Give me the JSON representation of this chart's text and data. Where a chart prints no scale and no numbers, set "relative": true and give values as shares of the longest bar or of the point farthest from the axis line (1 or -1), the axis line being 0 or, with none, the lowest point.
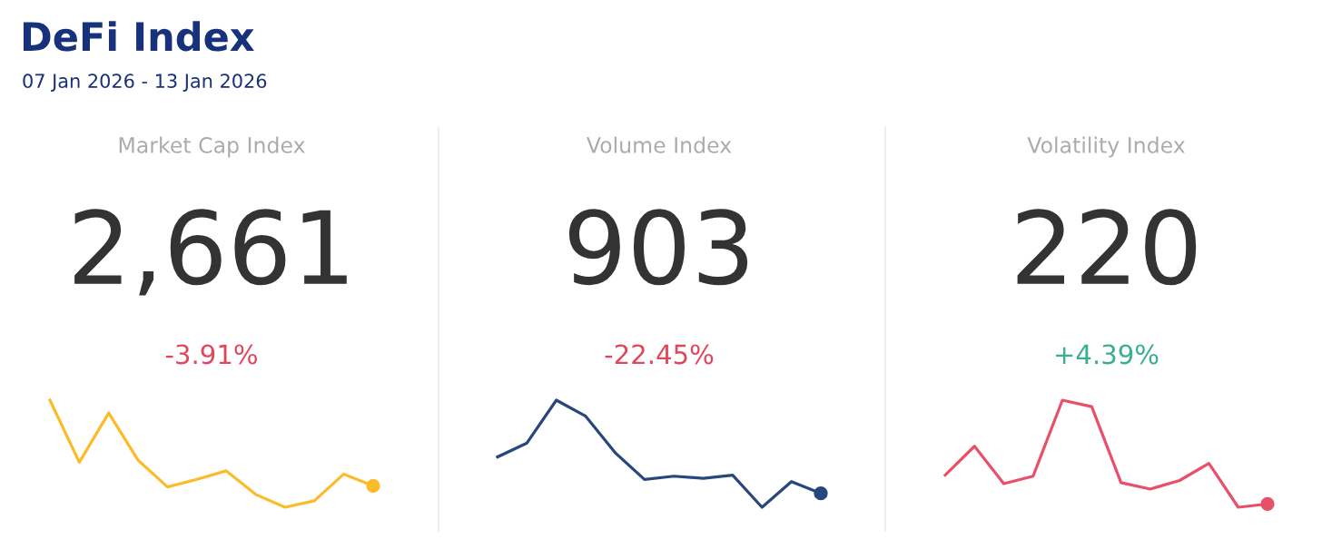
{
  "chart_data": [
    {
      "type": "other",
      "title": "DeFi Index",
      "subtitle": "07 Jan 2026 - 13 Jan 2026"
    },
    {
      "type": "line",
      "title": "Market Cap Index",
      "annotations": [
        "2,661",
        "-3.91%"
      ],
      "relative": true,
      "categories": [
        null,
        null,
        null,
        null,
        null,
        null,
        null,
        null,
        null,
        null,
        null,
        null
      ],
      "series": [
        {
          "color": "#fbbc2a",
          "values": [
            1,
            0.42,
            0.88,
            0.44,
            0.19,
            0.26,
            0.34,
            0.12,
            0,
            0.06,
            0.31,
            0.2
          ]
        }
      ]
    },
    {
      "type": "line",
      "title": "Volume Index",
      "annotations": [
        "903",
        "-22.45%"
      ],
      "relative": true,
      "categories": [
        null,
        null,
        null,
        null,
        null,
        null,
        null,
        null,
        null,
        null,
        null,
        null
      ],
      "series": [
        {
          "color": "#27477d",
          "values": [
            0.47,
            0.6,
            1,
            0.85,
            0.51,
            0.26,
            0.29,
            0.27,
            0.3,
            0,
            0.24,
            0.13
          ]
        }
      ]
    },
    {
      "type": "line",
      "title": "Volatility Index",
      "annotations": [
        "220",
        "+4.39%"
      ],
      "relative": true,
      "categories": [
        null,
        null,
        null,
        null,
        null,
        null,
        null,
        null,
        null,
        null,
        null,
        null
      ],
      "series": [
        {
          "color": "#e8506a",
          "values": [
            0.3,
            0.57,
            0.22,
            0.29,
            1,
            0.94,
            0.23,
            0.17,
            0.25,
            0.41,
            0,
            0.03
          ]
        }
      ]
    }
  ]
}
